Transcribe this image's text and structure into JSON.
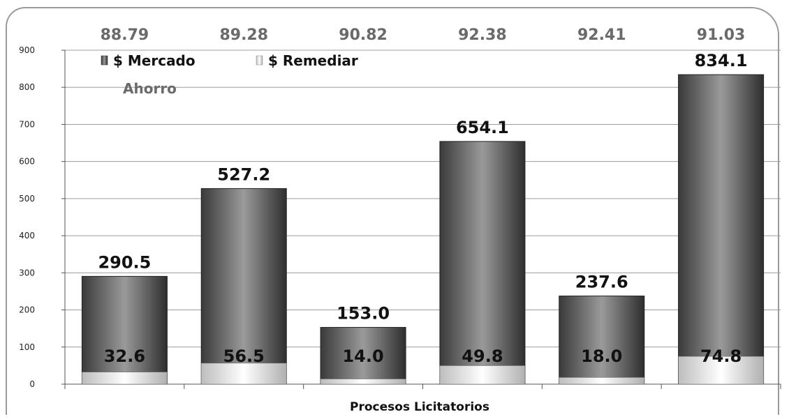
{
  "chart_data": {
    "type": "bar",
    "stacked": true,
    "xlabel": "Procesos Licitatorios",
    "ylabel": "",
    "ylim": [
      0,
      900
    ],
    "yticks": [
      0,
      100,
      200,
      300,
      400,
      500,
      600,
      700,
      800,
      900
    ],
    "grid": true,
    "legend_position": "top-left",
    "legend": [
      "$ Mercado",
      "$ Remediar"
    ],
    "savings_label": "Ahorro",
    "savings": [
      "88.79",
      "89.28",
      "90.82",
      "92.38",
      "92.41",
      "91.03"
    ],
    "series": [
      {
        "name": "$ Remediar",
        "values": [
          32.6,
          56.5,
          14.0,
          49.8,
          18.0,
          74.8
        ],
        "labels": [
          "32.6",
          "56.5",
          "14.0",
          "49.8",
          "18.0",
          "74.8"
        ],
        "color": "#e6e6e6"
      },
      {
        "name": "$ Mercado",
        "values": [
          290.5,
          527.2,
          153.0,
          654.1,
          237.6,
          834.1
        ],
        "labels": [
          "290.5",
          "527.2",
          "153.0",
          "654.1",
          "237.6",
          "834.1"
        ],
        "color": "#4a4a4a"
      }
    ]
  }
}
